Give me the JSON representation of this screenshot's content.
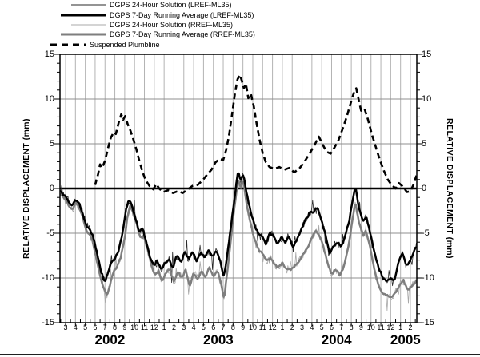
{
  "chart_data": {
    "type": "line",
    "title": "",
    "x_axis": {
      "unit": "month",
      "tick_labels": [
        "3",
        "4",
        "5",
        "6",
        "7",
        "8",
        "9",
        "10",
        "11",
        "12",
        "1",
        "2",
        "3",
        "4",
        "5",
        "6",
        "7",
        "8",
        "9",
        "10",
        "11",
        "12",
        "1",
        "2",
        "3",
        "4",
        "5",
        "6",
        "7",
        "8",
        "9",
        "10",
        "11",
        "12",
        "1",
        "2"
      ],
      "years": [
        {
          "label": "2002",
          "from": 0,
          "to": 9
        },
        {
          "label": "2003",
          "from": 10,
          "to": 21
        },
        {
          "label": "2004",
          "from": 22,
          "to": 33
        },
        {
          "label": "2005",
          "from": 34,
          "to": 35
        }
      ]
    },
    "y_axis": {
      "label_left": "RELATIVE DISPLACEMENT (mm)",
      "label_right": "RELATIVE DISPLACEMENT (mm)",
      "min": -15,
      "max": 15,
      "major_step": 5,
      "minor_step": 1,
      "tick_labels": [
        15,
        10,
        5,
        0,
        -5,
        -10,
        -15
      ]
    },
    "grid": {
      "v_color": "#b3b3b3",
      "h_color": "#8f8f8f",
      "zero_line_color": "#000000",
      "frame_color": "#000000"
    },
    "legend_order": [
      "lref24",
      "lref7",
      "rref24",
      "rref7",
      "plumb"
    ],
    "draw_order": [
      "rref24",
      "lref24",
      "rref7",
      "lref7",
      "plumb"
    ],
    "series": [
      {
        "key": "lref24",
        "label": "DGPS 24-Hour Solution (LREF-ML35)",
        "style": "thin-black",
        "color": "#2a2a2a",
        "width": 0.8,
        "derived_from": "lref7",
        "noise_amp": 0.55,
        "spike_amp": 1.6,
        "seed": 3
      },
      {
        "key": "lref7",
        "label": "DGPS 7-Day Running Average (LREF-ML35)",
        "style": "thick-black",
        "color": "#000000",
        "width": 2.5,
        "seed": 7,
        "wiggle": 0.16,
        "points": [
          [
            -0.57,
            -0.3
          ],
          [
            0,
            -0.9
          ],
          [
            0.4,
            -1.7
          ],
          [
            0.7,
            -1.9
          ],
          [
            1.0,
            -1.2
          ],
          [
            1.35,
            -1.6
          ],
          [
            1.7,
            -2.7
          ],
          [
            2.1,
            -4.2
          ],
          [
            2.5,
            -4.6
          ],
          [
            2.8,
            -5.4
          ],
          [
            3.2,
            -7.3
          ],
          [
            3.6,
            -9.3
          ],
          [
            4.0,
            -10.5
          ],
          [
            4.35,
            -9.2
          ],
          [
            4.7,
            -8.1
          ],
          [
            5.0,
            -7.9
          ],
          [
            5.4,
            -6.9
          ],
          [
            5.8,
            -4.9
          ],
          [
            6.1,
            -2.6
          ],
          [
            6.4,
            -1.3
          ],
          [
            6.75,
            -1.9
          ],
          [
            7.1,
            -3.3
          ],
          [
            7.45,
            -4.8
          ],
          [
            7.8,
            -4.4
          ],
          [
            8.2,
            -6.0
          ],
          [
            8.6,
            -7.8
          ],
          [
            9.0,
            -8.6
          ],
          [
            9.3,
            -8.0
          ],
          [
            9.7,
            -9.1
          ],
          [
            10.1,
            -8.3
          ],
          [
            10.5,
            -7.9
          ],
          [
            10.9,
            -8.9
          ],
          [
            11.3,
            -7.4
          ],
          [
            11.7,
            -8.3
          ],
          [
            12.1,
            -7.1
          ],
          [
            12.5,
            -7.9
          ],
          [
            12.9,
            -7.1
          ],
          [
            13.3,
            -8.1
          ],
          [
            13.7,
            -7.2
          ],
          [
            14.1,
            -7.7
          ],
          [
            14.5,
            -6.9
          ],
          [
            14.9,
            -7.6
          ],
          [
            15.3,
            -6.9
          ],
          [
            15.7,
            -8.1
          ],
          [
            16.05,
            -9.9
          ],
          [
            16.4,
            -7.6
          ],
          [
            16.8,
            -4.1
          ],
          [
            17.2,
            -0.6
          ],
          [
            17.5,
            2.0
          ],
          [
            17.75,
            0.9
          ],
          [
            18.05,
            1.6
          ],
          [
            18.4,
            -0.7
          ],
          [
            18.8,
            -2.6
          ],
          [
            19.2,
            -4.2
          ],
          [
            19.6,
            -5.1
          ],
          [
            20.0,
            -5.4
          ],
          [
            20.35,
            -6.3
          ],
          [
            20.7,
            -4.9
          ],
          [
            21.1,
            -5.3
          ],
          [
            21.5,
            -6.2
          ],
          [
            21.9,
            -5.4
          ],
          [
            22.3,
            -6.0
          ],
          [
            22.7,
            -5.3
          ],
          [
            23.1,
            -6.6
          ],
          [
            23.5,
            -5.6
          ],
          [
            23.9,
            -4.7
          ],
          [
            24.4,
            -3.4
          ],
          [
            24.8,
            -2.7
          ],
          [
            25.2,
            -2.6
          ],
          [
            25.6,
            -2.2
          ],
          [
            26.0,
            -3.7
          ],
          [
            26.4,
            -5.3
          ],
          [
            26.8,
            -7.2
          ],
          [
            27.2,
            -6.4
          ],
          [
            27.6,
            -6.1
          ],
          [
            28.0,
            -6.5
          ],
          [
            28.4,
            -5.2
          ],
          [
            28.8,
            -3.5
          ],
          [
            29.1,
            -1.6
          ],
          [
            29.4,
            0.3
          ],
          [
            29.8,
            -2.3
          ],
          [
            30.2,
            -3.7
          ],
          [
            30.5,
            -3.1
          ],
          [
            31.0,
            -5.3
          ],
          [
            31.4,
            -7.5
          ],
          [
            31.8,
            -8.9
          ],
          [
            32.2,
            -9.9
          ],
          [
            32.6,
            -10.4
          ],
          [
            33.0,
            -10.0
          ],
          [
            33.4,
            -10.3
          ],
          [
            33.8,
            -8.1
          ],
          [
            34.2,
            -7.2
          ],
          [
            34.6,
            -8.6
          ],
          [
            35.0,
            -8.0
          ],
          [
            35.3,
            -7.1
          ],
          [
            35.66,
            -6.4
          ]
        ]
      },
      {
        "key": "rref24",
        "label": "DGPS 24-Hour Solution (RREF-ML35)",
        "style": "thin-gray",
        "color": "#a8a8a8",
        "width": 0.8,
        "derived_from": "rref7",
        "noise_amp": 0.6,
        "spike_amp": 1.8,
        "seed": 5
      },
      {
        "key": "rref7",
        "label": "DGPS 7-Day Running Average (RREF-ML35)",
        "style": "thick-gray",
        "color": "#7e7e7e",
        "width": 2.5,
        "seed": 11,
        "wiggle": 0.16,
        "points": [
          [
            -0.57,
            -0.5
          ],
          [
            0,
            -1.2
          ],
          [
            0.4,
            -2.1
          ],
          [
            0.7,
            -2.3
          ],
          [
            1.0,
            -1.6
          ],
          [
            1.35,
            -2.0
          ],
          [
            1.7,
            -3.1
          ],
          [
            2.1,
            -4.7
          ],
          [
            2.5,
            -5.2
          ],
          [
            2.8,
            -6.1
          ],
          [
            3.2,
            -8.2
          ],
          [
            3.7,
            -10.6
          ],
          [
            4.2,
            -12.0
          ],
          [
            4.55,
            -10.6
          ],
          [
            4.9,
            -9.2
          ],
          [
            5.2,
            -8.8
          ],
          [
            5.6,
            -7.7
          ],
          [
            5.95,
            -5.8
          ],
          [
            6.25,
            -3.4
          ],
          [
            6.55,
            -1.9
          ],
          [
            6.9,
            -2.8
          ],
          [
            7.25,
            -4.1
          ],
          [
            7.6,
            -5.6
          ],
          [
            7.95,
            -5.3
          ],
          [
            8.35,
            -7.0
          ],
          [
            8.75,
            -8.8
          ],
          [
            9.1,
            -9.7
          ],
          [
            9.4,
            -9.1
          ],
          [
            9.8,
            -10.3
          ],
          [
            10.2,
            -9.4
          ],
          [
            10.6,
            -9.0
          ],
          [
            11.0,
            -10.5
          ],
          [
            11.4,
            -9.3
          ],
          [
            11.8,
            -10.0
          ],
          [
            12.2,
            -9.1
          ],
          [
            12.6,
            -11.0
          ],
          [
            13.0,
            -9.4
          ],
          [
            13.4,
            -10.2
          ],
          [
            13.8,
            -9.2
          ],
          [
            14.2,
            -10.0
          ],
          [
            14.6,
            -8.8
          ],
          [
            15.0,
            -9.9
          ],
          [
            15.4,
            -9.2
          ],
          [
            15.75,
            -10.5
          ],
          [
            16.1,
            -12.3
          ],
          [
            16.45,
            -9.0
          ],
          [
            16.85,
            -4.9
          ],
          [
            17.2,
            -1.6
          ],
          [
            17.5,
            1.1
          ],
          [
            17.75,
            0.1
          ],
          [
            18.05,
            0.8
          ],
          [
            18.4,
            -1.9
          ],
          [
            18.8,
            -4.0
          ],
          [
            19.2,
            -5.8
          ],
          [
            19.6,
            -6.9
          ],
          [
            20.0,
            -7.3
          ],
          [
            20.4,
            -8.1
          ],
          [
            20.8,
            -7.7
          ],
          [
            21.2,
            -8.5
          ],
          [
            21.6,
            -8.9
          ],
          [
            22.0,
            -8.3
          ],
          [
            22.4,
            -8.9
          ],
          [
            22.8,
            -9.1
          ],
          [
            23.2,
            -8.7
          ],
          [
            23.6,
            -8.2
          ],
          [
            24.1,
            -7.4
          ],
          [
            24.6,
            -6.6
          ],
          [
            25.0,
            -5.5
          ],
          [
            25.4,
            -4.7
          ],
          [
            25.8,
            -5.4
          ],
          [
            26.2,
            -6.6
          ],
          [
            26.6,
            -8.3
          ],
          [
            27.0,
            -9.7
          ],
          [
            27.4,
            -9.0
          ],
          [
            27.85,
            -9.7
          ],
          [
            28.25,
            -8.7
          ],
          [
            28.7,
            -6.6
          ],
          [
            29.1,
            -3.7
          ],
          [
            29.4,
            -1.5
          ],
          [
            29.8,
            -3.9
          ],
          [
            30.2,
            -5.3
          ],
          [
            30.5,
            -4.7
          ],
          [
            31.0,
            -7.1
          ],
          [
            31.4,
            -9.4
          ],
          [
            31.8,
            -11.0
          ],
          [
            32.2,
            -11.7
          ],
          [
            32.7,
            -12.0
          ],
          [
            33.1,
            -12.2
          ],
          [
            33.5,
            -11.6
          ],
          [
            33.9,
            -10.8
          ],
          [
            34.3,
            -10.3
          ],
          [
            34.7,
            -11.4
          ],
          [
            35.1,
            -11.0
          ],
          [
            35.66,
            -10.2
          ]
        ]
      },
      {
        "key": "plumb",
        "label": "Suspended Plumbline",
        "style": "dash-black",
        "color": "#000000",
        "width": 2.6,
        "dash": [
          7,
          4.5
        ],
        "points": [
          [
            3.0,
            0.4
          ],
          [
            3.3,
            1.6
          ],
          [
            3.5,
            2.7
          ],
          [
            3.7,
            2.3
          ],
          [
            4.0,
            3.1
          ],
          [
            4.3,
            4.5
          ],
          [
            4.6,
            5.7
          ],
          [
            4.9,
            6.3
          ],
          [
            5.1,
            6.1
          ],
          [
            5.4,
            7.4
          ],
          [
            5.65,
            8.3
          ],
          [
            5.85,
            7.7
          ],
          [
            6.05,
            8.1
          ],
          [
            6.3,
            7.2
          ],
          [
            6.6,
            6.4
          ],
          [
            6.9,
            5.4
          ],
          [
            7.2,
            4.3
          ],
          [
            7.5,
            3.0
          ],
          [
            7.8,
            1.9
          ],
          [
            8.1,
            1.0
          ],
          [
            8.5,
            0.3
          ],
          [
            8.9,
            -0.1
          ],
          [
            9.2,
            0.5
          ],
          [
            9.5,
            0.0
          ],
          [
            9.9,
            -0.4
          ],
          [
            10.4,
            -0.2
          ],
          [
            10.9,
            -0.5
          ],
          [
            11.4,
            -0.3
          ],
          [
            11.9,
            -0.5
          ],
          [
            12.4,
            -0.1
          ],
          [
            12.9,
            0.3
          ],
          [
            13.4,
            0.4
          ],
          [
            13.9,
            0.9
          ],
          [
            14.4,
            1.6
          ],
          [
            14.8,
            2.1
          ],
          [
            15.2,
            2.9
          ],
          [
            15.6,
            3.3
          ],
          [
            16.0,
            3.2
          ],
          [
            16.3,
            4.3
          ],
          [
            16.6,
            6.0
          ],
          [
            16.9,
            8.3
          ],
          [
            17.2,
            10.7
          ],
          [
            17.45,
            12.2
          ],
          [
            17.7,
            12.7
          ],
          [
            17.9,
            12.0
          ],
          [
            18.1,
            11.2
          ],
          [
            18.3,
            11.7
          ],
          [
            18.55,
            10.1
          ],
          [
            18.8,
            10.6
          ],
          [
            19.1,
            9.2
          ],
          [
            19.4,
            7.2
          ],
          [
            19.7,
            5.4
          ],
          [
            20.0,
            4.0
          ],
          [
            20.3,
            3.0
          ],
          [
            20.7,
            2.4
          ],
          [
            21.2,
            2.2
          ],
          [
            21.7,
            2.4
          ],
          [
            22.2,
            2.1
          ],
          [
            22.7,
            2.3
          ],
          [
            23.2,
            1.8
          ],
          [
            23.7,
            2.2
          ],
          [
            24.2,
            2.9
          ],
          [
            24.7,
            3.8
          ],
          [
            25.2,
            4.7
          ],
          [
            25.7,
            5.8
          ],
          [
            26.1,
            4.9
          ],
          [
            26.5,
            4.1
          ],
          [
            26.9,
            3.9
          ],
          [
            27.3,
            4.6
          ],
          [
            27.7,
            5.4
          ],
          [
            28.1,
            6.6
          ],
          [
            28.5,
            7.9
          ],
          [
            28.9,
            9.4
          ],
          [
            29.2,
            10.5
          ],
          [
            29.5,
            11.2
          ],
          [
            29.75,
            9.9
          ],
          [
            30.0,
            8.7
          ],
          [
            30.35,
            8.9
          ],
          [
            30.7,
            7.7
          ],
          [
            31.1,
            6.0
          ],
          [
            31.5,
            4.6
          ],
          [
            31.9,
            3.2
          ],
          [
            32.3,
            2.0
          ],
          [
            32.7,
            1.0
          ],
          [
            33.1,
            0.4
          ],
          [
            33.5,
            0.0
          ],
          [
            33.85,
            0.6
          ],
          [
            34.25,
            0.2
          ],
          [
            34.65,
            -0.4
          ],
          [
            35.0,
            -0.3
          ],
          [
            35.3,
            0.4
          ],
          [
            35.66,
            1.6
          ]
        ]
      }
    ]
  }
}
